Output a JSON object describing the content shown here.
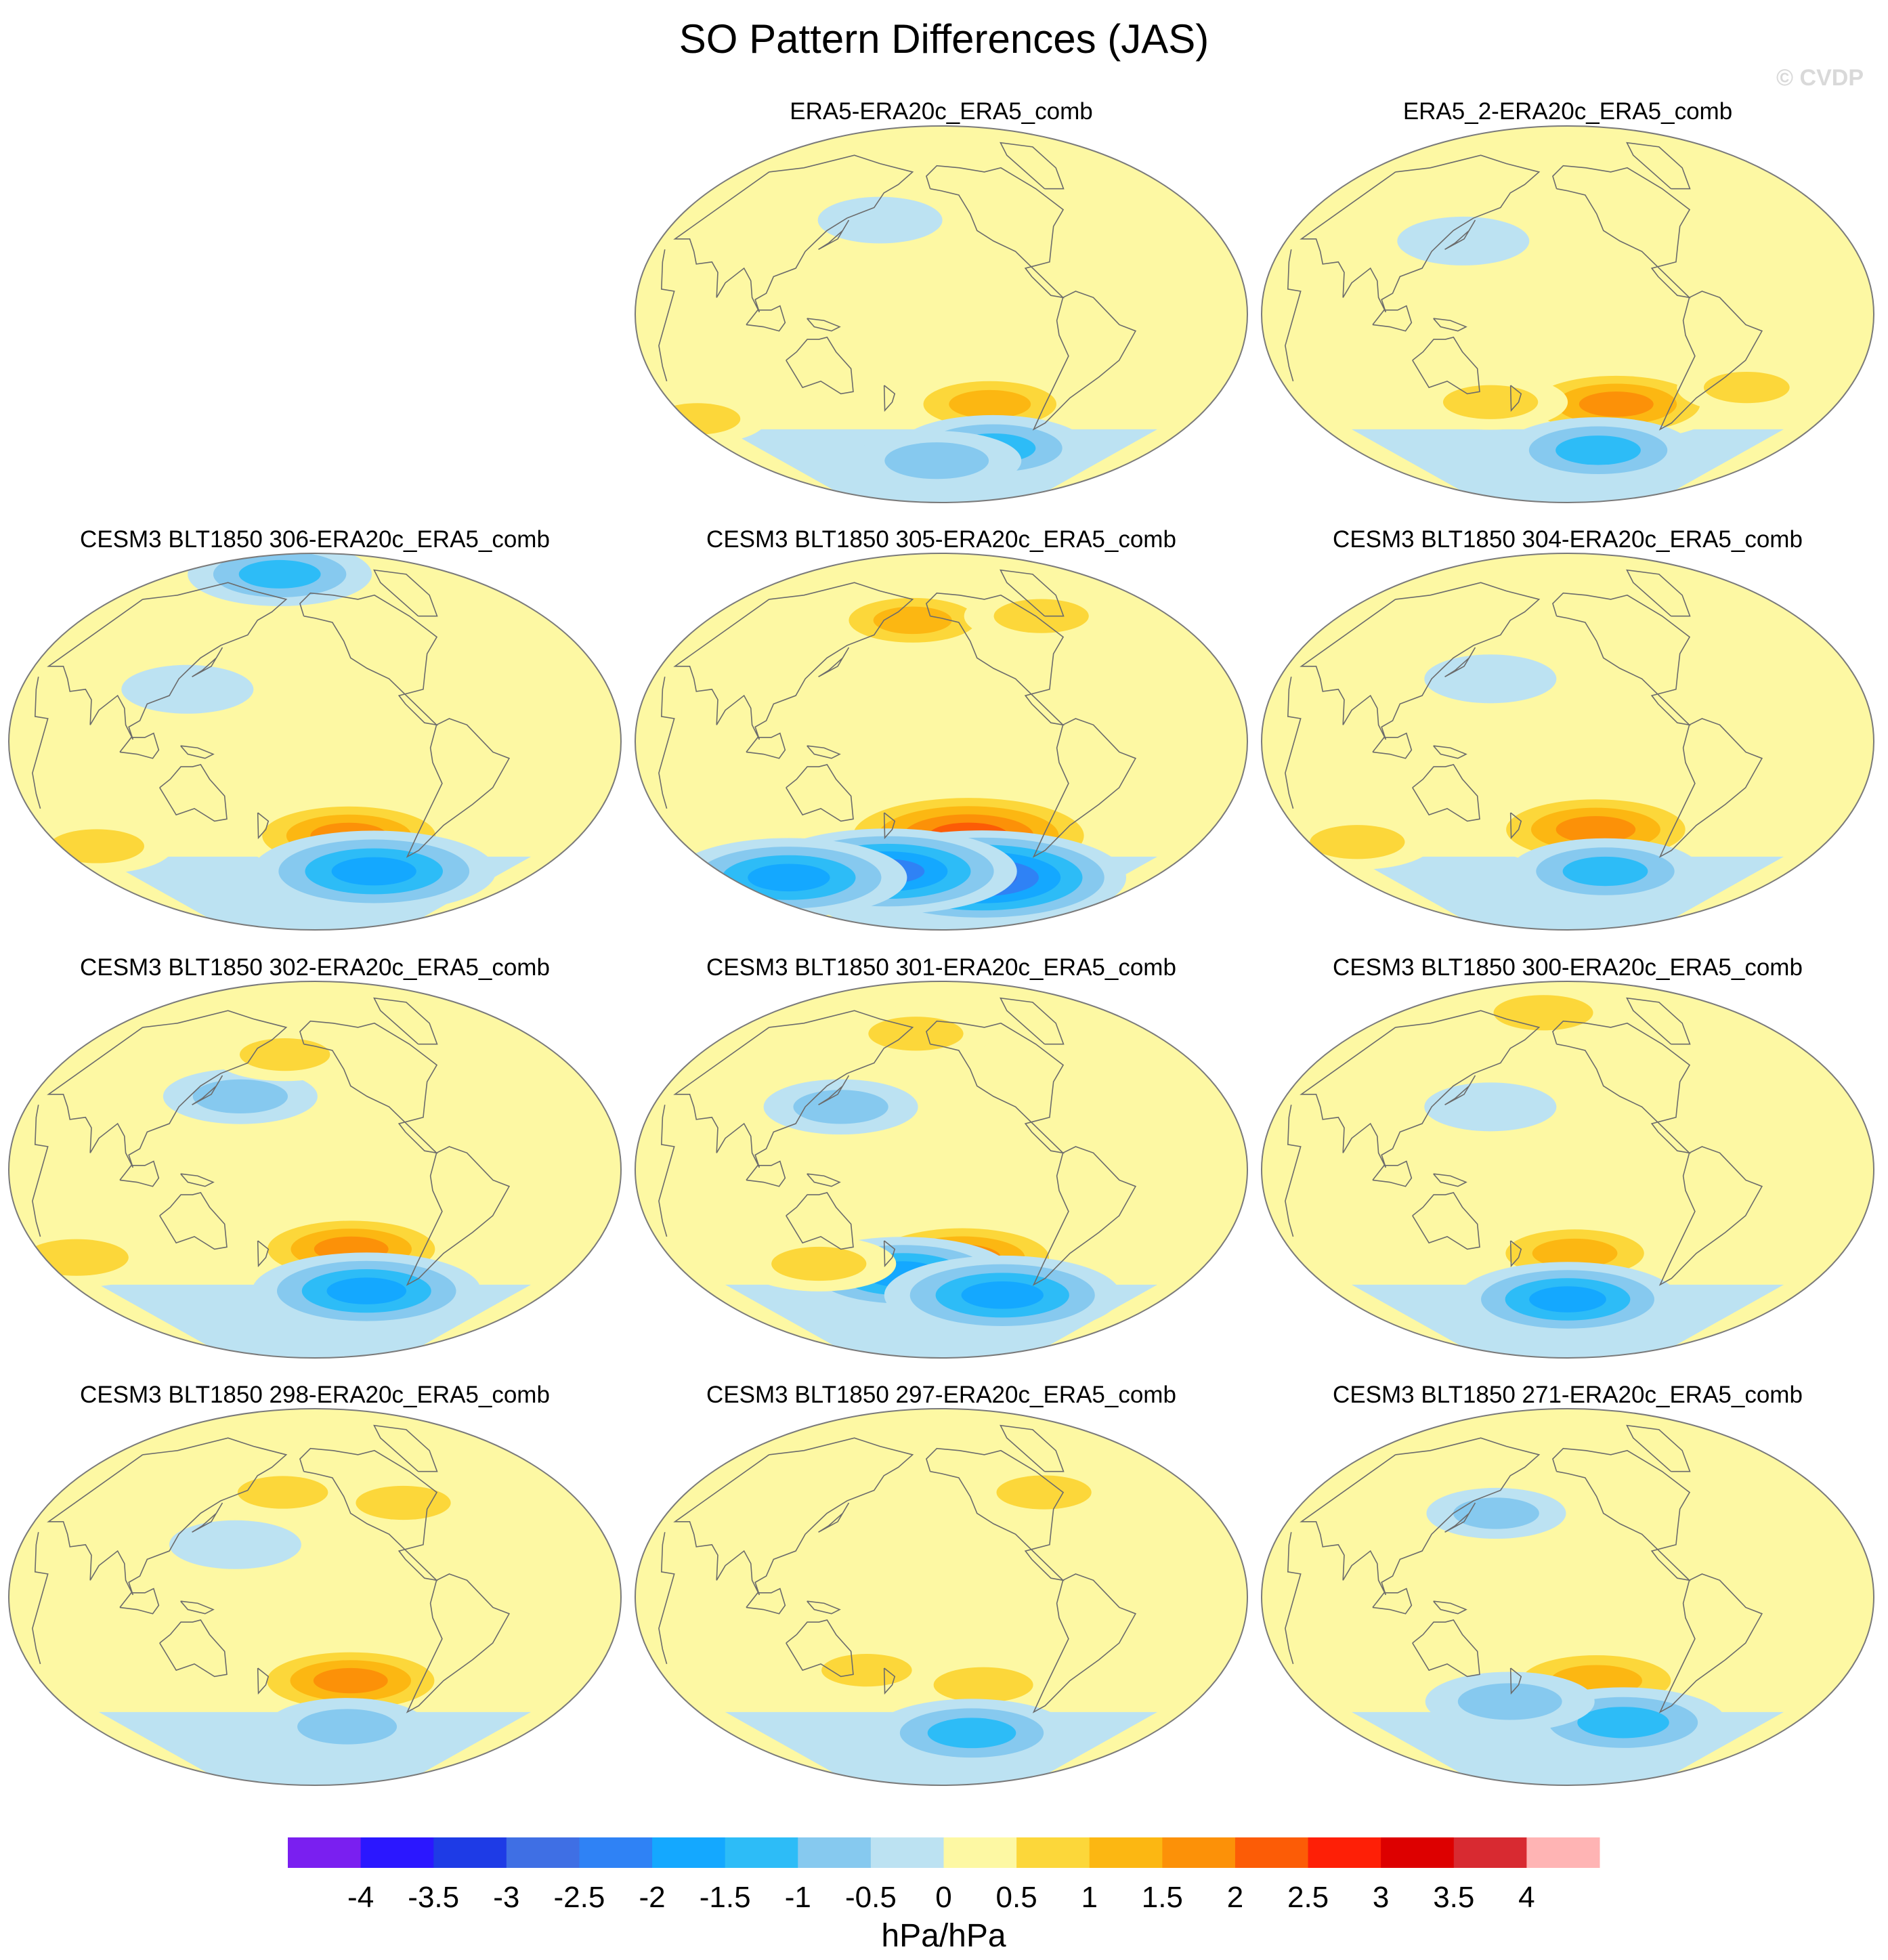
{
  "title": "SO Pattern Differences (JAS)",
  "watermark": "© CVDP",
  "chart_data": {
    "type": "contour_map_grid",
    "title": "SO Pattern Differences (JAS)",
    "projection": "Robinson (Pacific-centered)",
    "units": "hPa/hPa",
    "colorbar": {
      "levels": [
        -4,
        -3.5,
        -3,
        -2.5,
        -2,
        -1.5,
        -1,
        -0.5,
        0,
        0.5,
        1,
        1.5,
        2,
        2.5,
        3,
        3.5,
        4
      ],
      "tick_labels": [
        "-4",
        "-3.5",
        "-3",
        "-2.5",
        "-2",
        "-1.5",
        "-1",
        "-0.5",
        "0",
        "0.5",
        "1",
        "1.5",
        "2",
        "2.5",
        "3",
        "3.5",
        "4"
      ],
      "colors": [
        "#7a1ff0",
        "#2b17ff",
        "#1e3be6",
        "#3f6fe4",
        "#2f82f5",
        "#14a8ff",
        "#2dbcf7",
        "#86c9ef",
        "#bce2f2",
        "#fdf8a3",
        "#fcd73a",
        "#fcb712",
        "#fc9108",
        "#fc5c06",
        "#fe1f06",
        "#dd0000",
        "#d82a31",
        "#ffb4b4"
      ],
      "units": "hPa/hPa"
    },
    "panels": [
      {
        "name": "ERA5-ERA20c_ERA5_comb",
        "max_positive": 1.5,
        "min_negative": -1.5,
        "features": [
          {
            "lon": 245,
            "lat": -43,
            "value": 1.2
          },
          {
            "lon": 260,
            "lat": -64,
            "value": -1.3
          },
          {
            "lon": 205,
            "lat": -70,
            "value": -1.0
          },
          {
            "lon": 165,
            "lat": 45,
            "value": -0.4
          },
          {
            "lon": 20,
            "lat": -50,
            "value": 0.6
          }
        ]
      },
      {
        "name": "ERA5_2-ERA20c_ERA5_comb",
        "max_positive": 2.0,
        "min_negative": -1.5,
        "features": [
          {
            "lon": 245,
            "lat": -43,
            "value": 1.6
          },
          {
            "lon": 240,
            "lat": -65,
            "value": -1.3
          },
          {
            "lon": 155,
            "lat": -42,
            "value": 0.8
          },
          {
            "lon": 140,
            "lat": 35,
            "value": -0.5
          },
          {
            "lon": 330,
            "lat": -35,
            "value": 0.6
          }
        ]
      },
      {
        "name": "CESM3 BLT1850 306-ERA20c_ERA5_comb",
        "max_positive": 2.0,
        "min_negative": -2.0,
        "features": [
          {
            "lon": 235,
            "lat": -45,
            "value": 1.7
          },
          {
            "lon": 265,
            "lat": -62,
            "value": -2.0
          },
          {
            "lon": 160,
            "lat": 80,
            "value": -1.2
          },
          {
            "lon": 40,
            "lat": -50,
            "value": 0.8
          },
          {
            "lon": 130,
            "lat": 25,
            "value": -0.5
          }
        ]
      },
      {
        "name": "CESM3 BLT1850 305-ERA20c_ERA5_comb",
        "max_positive": 2.5,
        "min_negative": -2.5,
        "features": [
          {
            "lon": 230,
            "lat": -45,
            "value": 2.5
          },
          {
            "lon": 250,
            "lat": -65,
            "value": -2.6
          },
          {
            "lon": 160,
            "lat": -62,
            "value": -2.2
          },
          {
            "lon": 60,
            "lat": -65,
            "value": -1.9
          },
          {
            "lon": 185,
            "lat": 58,
            "value": 1.1
          },
          {
            "lon": 300,
            "lat": 60,
            "value": 0.8
          }
        ]
      },
      {
        "name": "CESM3 BLT1850 304-ERA20c_ERA5_comb",
        "max_positive": 2.0,
        "min_negative": -1.5,
        "features": [
          {
            "lon": 230,
            "lat": -42,
            "value": 1.8
          },
          {
            "lon": 245,
            "lat": -62,
            "value": -1.3
          },
          {
            "lon": 50,
            "lat": -48,
            "value": 0.8
          },
          {
            "lon": 160,
            "lat": 30,
            "value": -0.5
          }
        ]
      },
      {
        "name": "CESM3 BLT1850 302-ERA20c_ERA5_comb",
        "max_positive": 1.5,
        "min_negative": -2.0,
        "features": [
          {
            "lon": 235,
            "lat": -38,
            "value": 1.6
          },
          {
            "lon": 255,
            "lat": -58,
            "value": -1.8
          },
          {
            "lon": 40,
            "lat": -42,
            "value": 1.0
          },
          {
            "lon": 160,
            "lat": 35,
            "value": -0.8
          },
          {
            "lon": 185,
            "lat": 55,
            "value": 0.7
          }
        ]
      },
      {
        "name": "CESM3 BLT1850 301-ERA20c_ERA5_comb",
        "max_positive": 2.0,
        "min_negative": -2.0,
        "features": [
          {
            "lon": 225,
            "lat": -42,
            "value": 1.7
          },
          {
            "lon": 180,
            "lat": -50,
            "value": -1.7
          },
          {
            "lon": 265,
            "lat": -60,
            "value": -1.9
          },
          {
            "lon": 120,
            "lat": -45,
            "value": 0.8
          },
          {
            "lon": 185,
            "lat": 65,
            "value": 0.8
          },
          {
            "lon": 145,
            "lat": 30,
            "value": -0.8
          }
        ]
      },
      {
        "name": "CESM3 BLT1850 300-ERA20c_ERA5_comb",
        "max_positive": 1.5,
        "min_negative": -2.0,
        "features": [
          {
            "lon": 215,
            "lat": -40,
            "value": 1.3
          },
          {
            "lon": 210,
            "lat": -62,
            "value": -1.7
          },
          {
            "lon": 180,
            "lat": 75,
            "value": 0.9
          },
          {
            "lon": 160,
            "lat": 30,
            "value": -0.5
          }
        ]
      },
      {
        "name": "CESM3 BLT1850 298-ERA20c_ERA5_comb",
        "max_positive": 1.5,
        "min_negative": -1.0,
        "features": [
          {
            "lon": 235,
            "lat": -40,
            "value": 1.6
          },
          {
            "lon": 240,
            "lat": -62,
            "value": -0.9
          },
          {
            "lon": 185,
            "lat": 50,
            "value": 0.7
          },
          {
            "lon": 275,
            "lat": 45,
            "value": 0.8
          },
          {
            "lon": 160,
            "lat": 25,
            "value": -0.5
          }
        ]
      },
      {
        "name": "CESM3 BLT1850 297-ERA20c_ERA5_comb",
        "max_positive": 1.0,
        "min_negative": -1.5,
        "features": [
          {
            "lon": 240,
            "lat": -42,
            "value": 0.9
          },
          {
            "lon": 240,
            "lat": -65,
            "value": -1.4
          },
          {
            "lon": 160,
            "lat": -35,
            "value": 0.7
          },
          {
            "lon": 290,
            "lat": 50,
            "value": 0.8
          }
        ]
      },
      {
        "name": "CESM3 BLT1850 271-ERA20c_ERA5_comb",
        "max_positive": 1.5,
        "min_negative": -1.5,
        "features": [
          {
            "lon": 230,
            "lat": -40,
            "value": 1.5
          },
          {
            "lon": 260,
            "lat": -60,
            "value": -1.5
          },
          {
            "lon": 165,
            "lat": -50,
            "value": -1.0
          },
          {
            "lon": 160,
            "lat": 40,
            "value": -0.6
          }
        ]
      }
    ]
  }
}
